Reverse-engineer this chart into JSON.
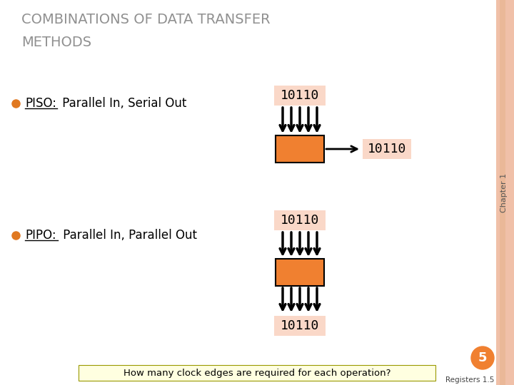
{
  "title_line1": "COMBINATIONS OF DATA TRANSFER",
  "title_line2": "METHODS",
  "title_color": "#909090",
  "bg_color": "#FFFFFF",
  "piso_label": "PISO:",
  "piso_desc": "Parallel In, Serial Out",
  "pipo_label": "PIPO:",
  "pipo_desc": "Parallel In, Parallel Out",
  "data_value": "10110",
  "box_color": "#F08030",
  "box_bg_color": "#FAD8C8",
  "bullet_color": "#E07820",
  "arrow_color": "#000000",
  "chapter_text": "Chapter 1",
  "page_number": "5",
  "page_number_bg": "#F08030",
  "bottom_text": "How many clock edges are required for each operation?",
  "bottom_text_bg": "#FFFFE0",
  "registers_text": "Registers 1.5",
  "right_border_color": "#F0C0A8",
  "right_border2_color": "#EAB898"
}
